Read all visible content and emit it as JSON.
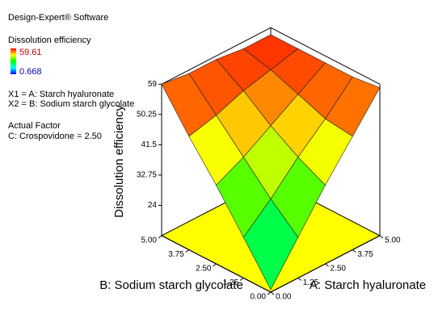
{
  "panel": {
    "software": "Design-Expert® Software",
    "variables": [
      "X1 = A: Starch hyaluronate",
      "X2 = B: Sodium starch glycolate"
    ],
    "actual_factor_title": "Actual Factor",
    "actual_factor": "C: Crospovidone = 2.50"
  },
  "chart_data": {
    "type": "surface",
    "xlabel": "A: Starch hyaluronate",
    "ylabel": "B: Sodium starch glycolate",
    "zlabel": "Dissolution efficiency",
    "x": [
      0,
      1.25,
      2.5,
      3.75,
      5
    ],
    "y": [
      0,
      1.25,
      2.5,
      3.75,
      5
    ],
    "z": [
      [
        16,
        27,
        38,
        48,
        58
      ],
      [
        27,
        34,
        42,
        49,
        57
      ],
      [
        38,
        42,
        47,
        52,
        57
      ],
      [
        48,
        50,
        53,
        55,
        57
      ],
      [
        59,
        58,
        58,
        57,
        57
      ]
    ],
    "xlim": [
      0,
      5
    ],
    "ylim": [
      0,
      5
    ],
    "zlim": [
      15.25,
      59
    ],
    "xticks": [
      {
        "value": 0,
        "label": "0.00"
      },
      {
        "value": 1.25,
        "label": "1.25"
      },
      {
        "value": 2.5,
        "label": "2.50"
      },
      {
        "value": 3.75,
        "label": "3.75"
      },
      {
        "value": 5,
        "label": "5.00"
      }
    ],
    "yticks": [
      {
        "value": 0,
        "label": "0.00"
      },
      {
        "value": 1.25,
        "label": "1.25"
      },
      {
        "value": 2.5,
        "label": "2.50"
      },
      {
        "value": 3.75,
        "label": "3.75"
      },
      {
        "value": 5,
        "label": "5.00"
      }
    ],
    "zticks": [
      24,
      32.75,
      41.5,
      50.25,
      59
    ],
    "floor_color": "#ffff00",
    "colorbar": {
      "title": "Dissolution efficiency",
      "max": 59.61,
      "min": 0.668
    }
  }
}
